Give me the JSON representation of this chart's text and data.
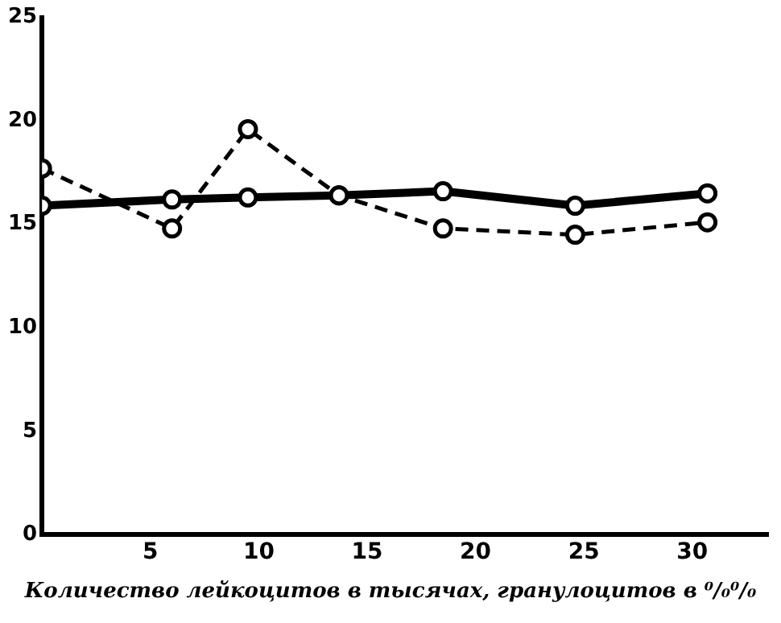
{
  "chart_data": {
    "type": "line",
    "xlabel": "Количество лейкоцитов в тысячах, гранулоцитов в ⁰/₀⁰/₀",
    "xlim": [
      0,
      33.5
    ],
    "xticks": [
      5,
      10,
      15,
      20,
      25,
      30
    ],
    "ylim": [
      0,
      25
    ],
    "yticks": [
      0,
      5,
      10,
      15,
      20,
      25
    ],
    "grid": false,
    "marker": "circle",
    "series": [
      {
        "color": "#000000",
        "line_style": "solid",
        "x": [
          0,
          6,
          9.5,
          13.7,
          18.5,
          24.6,
          30.7
        ],
        "values": [
          15.9,
          16.2,
          16.3,
          16.4,
          16.6,
          15.9,
          16.5
        ]
      },
      {
        "color": "#000000",
        "line_style": "dashed",
        "x": [
          0,
          6,
          9.5,
          13.7,
          18.5,
          24.6,
          30.7
        ],
        "values": [
          17.7,
          14.8,
          19.6,
          16.4,
          14.8,
          14.5,
          15.1
        ]
      }
    ]
  }
}
